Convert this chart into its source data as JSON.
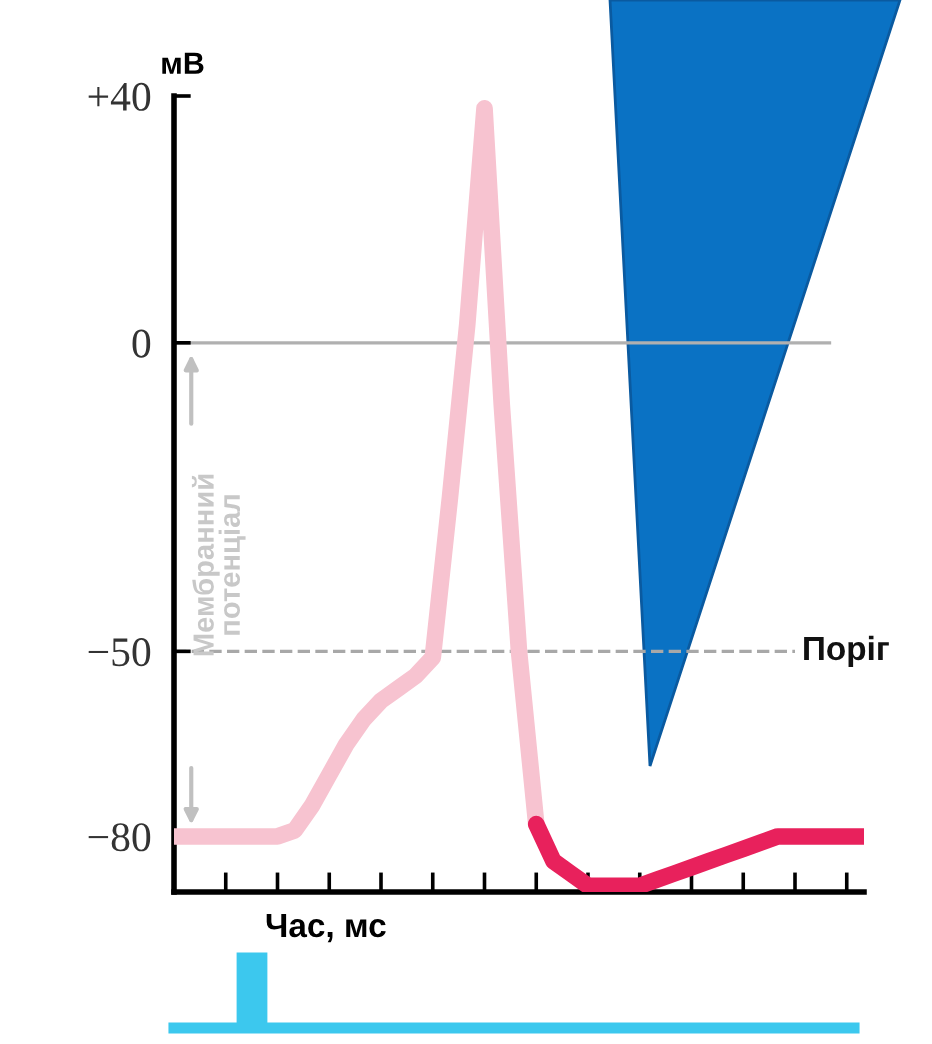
{
  "chart_data": {
    "type": "line",
    "ylabel": "мВ",
    "xlabel": "Час, мс",
    "categories": [
      null,
      null,
      null,
      null,
      null,
      null,
      null,
      null,
      null,
      null,
      null,
      null,
      null,
      null,
      null,
      null,
      null,
      null,
      null,
      null,
      null,
      null,
      null,
      null,
      null,
      null,
      null,
      null,
      null,
      null,
      null,
      null,
      null,
      null,
      null,
      null,
      null,
      null,
      null,
      null,
      null
    ],
    "series": [
      {
        "color": "#f7c3d0",
        "values": [
          -80,
          -80,
          -80,
          -80,
          -80,
          -80,
          -80,
          -79,
          -75,
          -70,
          -65,
          -61,
          -58,
          -56,
          -54,
          -51,
          -25,
          3,
          38,
          -10,
          -50,
          -78,
          null,
          null,
          null,
          null,
          null,
          null,
          null,
          null,
          null,
          null,
          null,
          null,
          null,
          null,
          null,
          null,
          null,
          null,
          null
        ]
      },
      {
        "color": "#e8215c",
        "values": [
          null,
          null,
          null,
          null,
          null,
          null,
          null,
          null,
          null,
          null,
          null,
          null,
          null,
          null,
          null,
          null,
          null,
          null,
          null,
          null,
          null,
          -78,
          -84,
          -86,
          -88,
          -88,
          -88,
          -88,
          -87,
          -86,
          -85,
          -84,
          -83,
          -82,
          -81,
          -80,
          -80,
          -80,
          -80,
          -80,
          -80
        ]
      }
    ],
    "ylim": [
      -89,
      40
    ],
    "yticks": [
      {
        "value": 40,
        "label": "+40"
      },
      0,
      {
        "value": -50,
        "label": "−50"
      },
      {
        "value": -80,
        "label": "−80"
      }
    ],
    "ref_lines": [
      {
        "axis": "y",
        "value": 0,
        "color": "#b0b0b0",
        "line_style": "solid"
      },
      {
        "axis": "y",
        "value": -50,
        "label": "Поріг",
        "color": "#a8a8a8",
        "line_style": "dashed"
      }
    ],
    "annotations": [
      "Мембранний потенціал"
    ],
    "grid": false,
    "marker": "none",
    "line_style": "solid"
  }
}
